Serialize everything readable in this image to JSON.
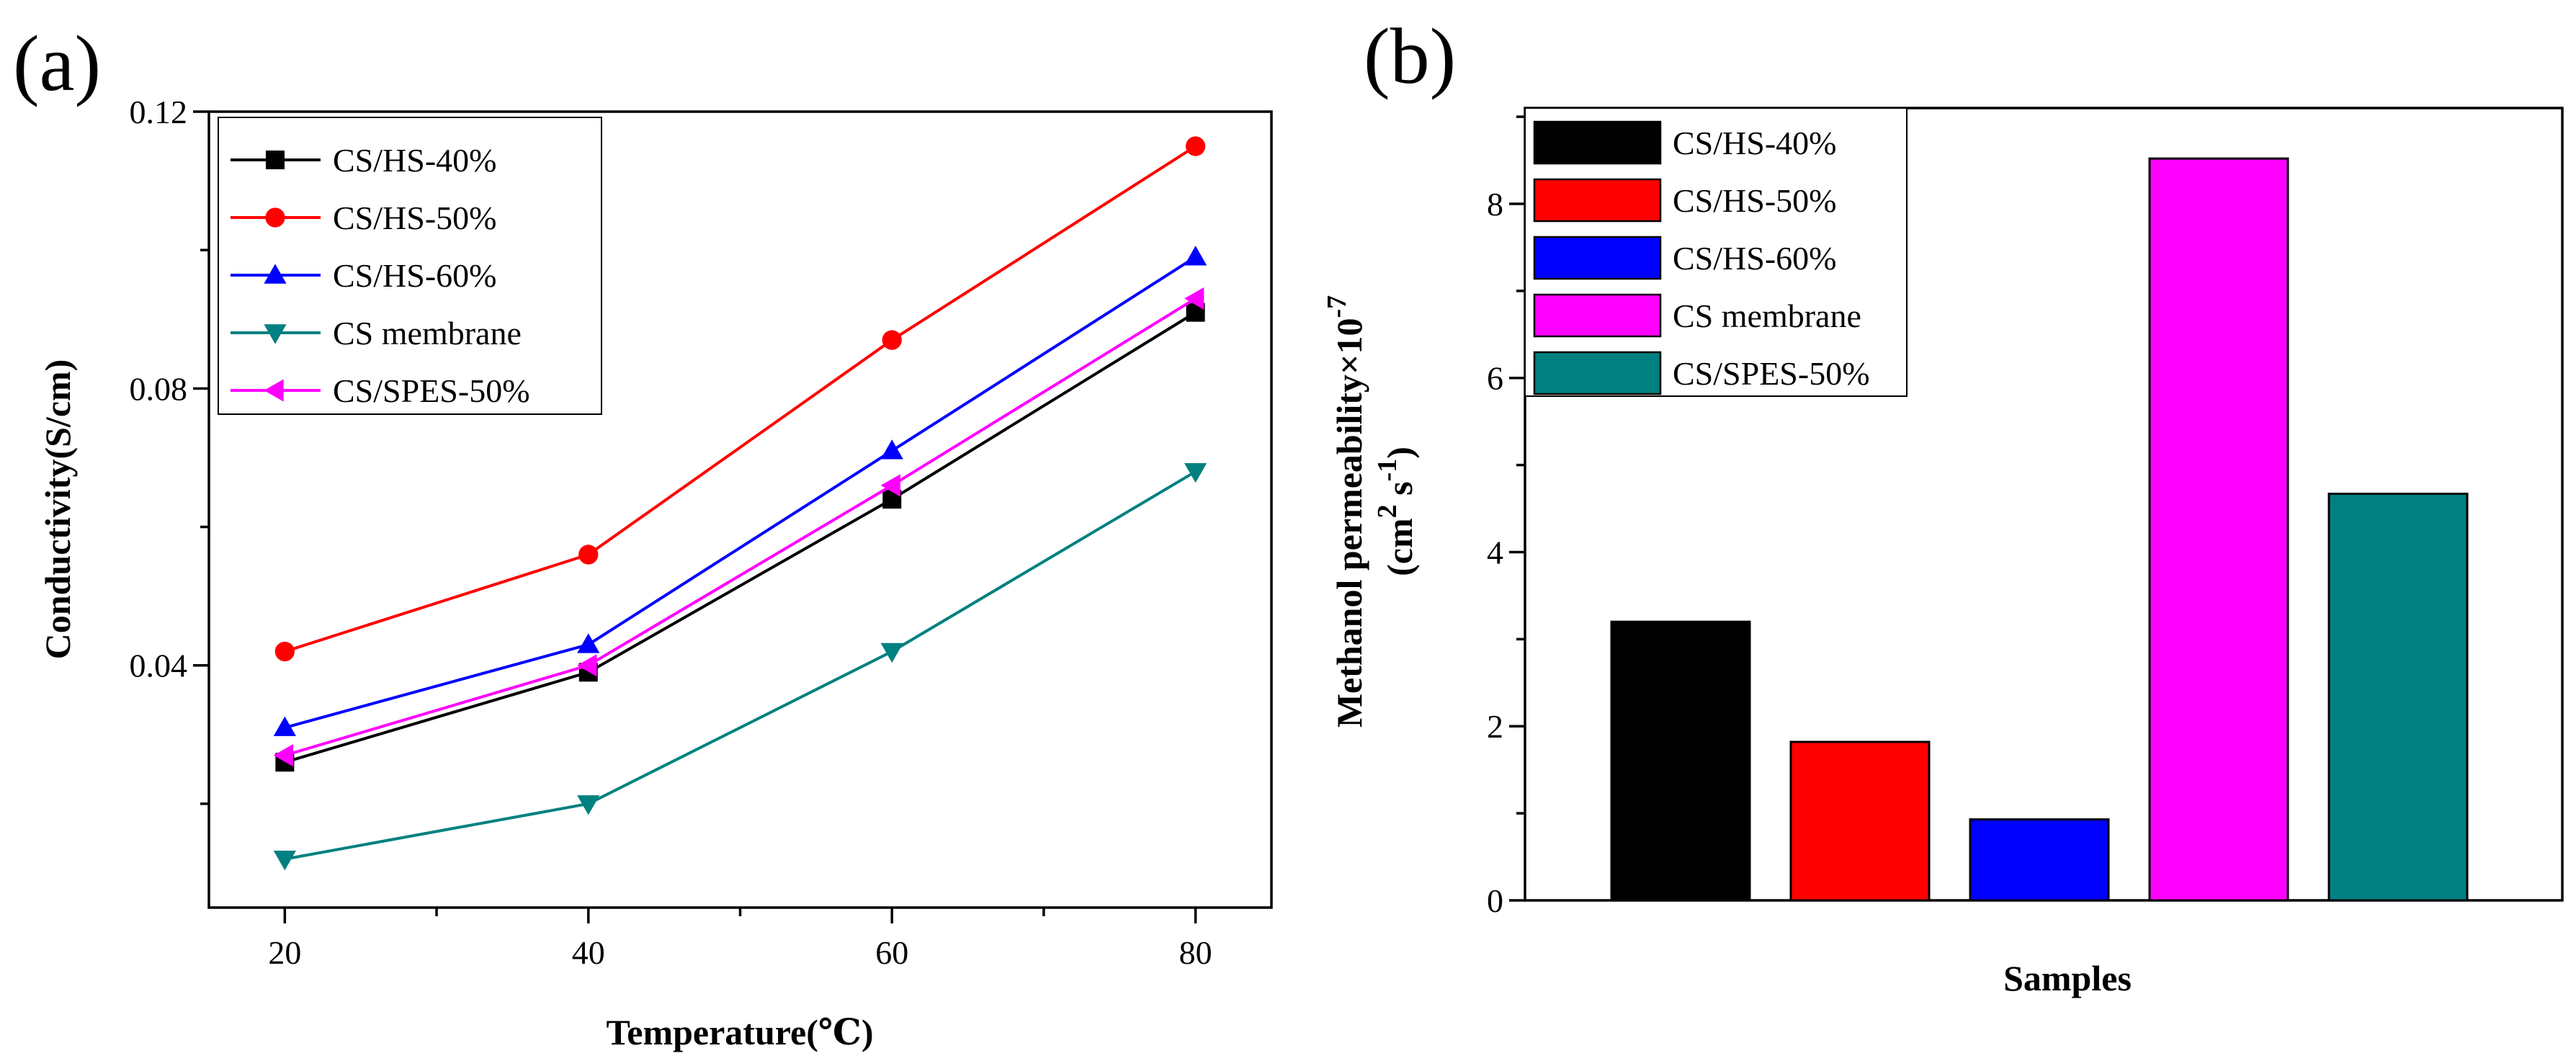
{
  "chart_data": [
    {
      "type": "line",
      "panel_label": "(a)",
      "title": "",
      "xlabel": "Temperature(℃)",
      "ylabel": "Conductivity(S/cm)",
      "xlim": [
        15,
        85
      ],
      "ylim": [
        0.005,
        0.12
      ],
      "x_ticks": [
        20,
        40,
        60,
        80
      ],
      "x_tick_labels": [
        "20",
        "40",
        "60",
        "80"
      ],
      "y_ticks": [
        0.04,
        0.08,
        0.12
      ],
      "y_tick_labels": [
        "0.04",
        "0.08",
        "0.12"
      ],
      "legend_position": "top-left",
      "x": [
        20,
        40,
        60,
        80
      ],
      "series": [
        {
          "name": "CS/HS-40%",
          "marker": "square",
          "color": "#000000",
          "values": [
            0.026,
            0.039,
            0.064,
            0.091
          ]
        },
        {
          "name": "CS/HS-50%",
          "marker": "circle",
          "color": "#ff0000",
          "values": [
            0.042,
            0.056,
            0.087,
            0.115
          ]
        },
        {
          "name": "CS/HS-60%",
          "marker": "triangle-up",
          "color": "#0000ff",
          "values": [
            0.031,
            0.043,
            0.071,
            0.099
          ]
        },
        {
          "name": "CS membrane",
          "marker": "triangle-down",
          "color": "#008080",
          "values": [
            0.012,
            0.02,
            0.042,
            0.068
          ]
        },
        {
          "name": "CS/SPES-50%",
          "marker": "triangle-left",
          "color": "#ff00ff",
          "values": [
            0.027,
            0.04,
            0.066,
            0.093
          ]
        }
      ]
    },
    {
      "type": "bar",
      "panel_label": "(b)",
      "title": "",
      "xlabel": "Samples",
      "ylabel_line1": "Methanol permeability×10",
      "ylabel_line1_sup": "-7",
      "ylabel_line2_a": "(cm",
      "ylabel_line2_sup1": "2",
      "ylabel_line2_b": " s",
      "ylabel_line2_sup2": "-1",
      "ylabel_line2_c": ")",
      "ylim": [
        0,
        9.1
      ],
      "y_ticks": [
        0,
        2,
        4,
        6,
        8
      ],
      "y_tick_labels": [
        "0",
        "2",
        "4",
        "6",
        "8"
      ],
      "legend_position": "top-left",
      "categories": [
        "CS/HS-40%",
        "CS/HS-50%",
        "CS/HS-60%",
        "CS membrane",
        "CS/SPES-50%"
      ],
      "values": [
        3.2,
        1.82,
        0.93,
        8.52,
        4.67
      ],
      "colors": [
        "#000000",
        "#ff0000",
        "#0000ff",
        "#ff00ff",
        "#008080"
      ]
    }
  ]
}
